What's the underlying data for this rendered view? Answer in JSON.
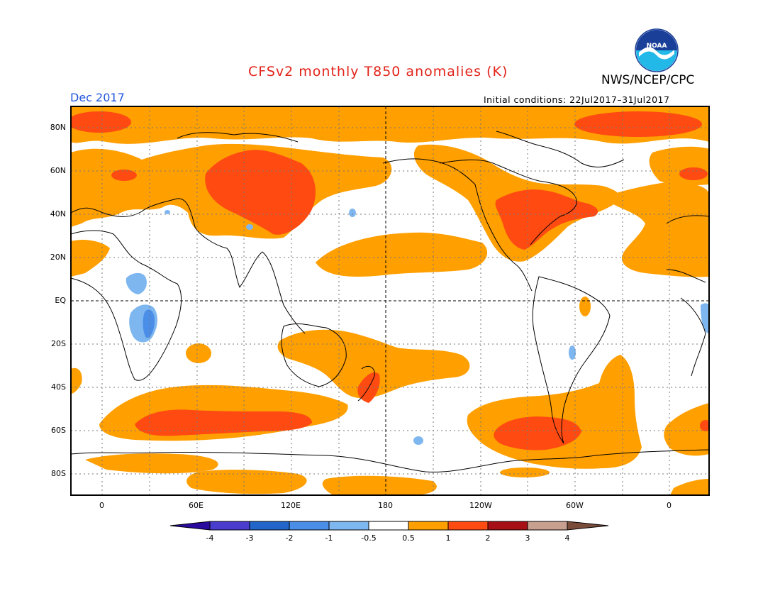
{
  "header": {
    "title": "CFSv2 monthly T850 anomalies (K)",
    "agency": "NWS/NCEP/CPC",
    "logo_text": "NOAA",
    "valid_month": "Dec 2017",
    "initial_conditions_label": "Initial conditions:",
    "initial_conditions_value": "22Jul2017–31Jul2017"
  },
  "axes": {
    "lat_labels": [
      "80N",
      "60N",
      "40N",
      "20N",
      "EQ",
      "20S",
      "40S",
      "60S",
      "80S"
    ],
    "lon_labels": [
      "0",
      "60E",
      "120E",
      "180",
      "120W",
      "60W",
      "0"
    ]
  },
  "colorbar": {
    "labels": [
      "-4",
      "-3",
      "-2",
      "-1",
      "-0.5",
      "0.5",
      "1",
      "2",
      "3",
      "4"
    ],
    "colors": [
      "#2a0a9e",
      "#4a3ccc",
      "#2166c8",
      "#4a8ee8",
      "#7eb6f0",
      "#ffffff",
      "#ff9f00",
      "#ff4a12",
      "#a50f15",
      "#c8a090",
      "#7a4c3a"
    ]
  },
  "colors": {
    "weak_warm": "#ff9f00",
    "warm": "#ff4a12",
    "weak_cold": "#7eb6f0",
    "cold": "#4a8ee8"
  }
}
